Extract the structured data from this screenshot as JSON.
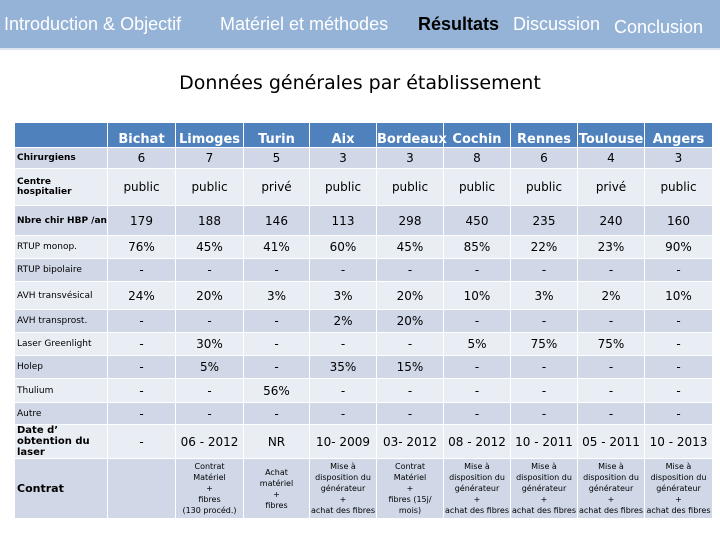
{
  "nav": {
    "items": [
      "Introduction & Objectif",
      "Matériel et méthodes",
      "Résultats",
      "Discussion",
      "Conclusion"
    ],
    "active": "Résultats"
  },
  "title": "Données générales par établissement",
  "table": {
    "columns": [
      "",
      "Bichat",
      "Limoges",
      "Turin",
      "Aix",
      "Bordeaux",
      "Cochin",
      "Rennes",
      "Toulouse",
      "Angers"
    ],
    "rows": [
      {
        "label": "Chirurgiens",
        "bold": true,
        "cells": [
          "6",
          "7",
          "5",
          "3",
          "3",
          "8",
          "6",
          "4",
          "3"
        ]
      },
      {
        "label": "Centre hospitalier",
        "bold": true,
        "cells": [
          "public",
          "public",
          "privé",
          "public",
          "public",
          "public",
          "public",
          "privé",
          "public"
        ]
      },
      {
        "label": "Nbre chir HBP /an",
        "bold": true,
        "cells": [
          "179",
          "188",
          "146",
          "113",
          "298",
          "450",
          "235",
          "240",
          "160"
        ]
      },
      {
        "label": "RTUP monop.",
        "bold": false,
        "cells": [
          "76%",
          "45%",
          "41%",
          "60%",
          "45%",
          "85%",
          "22%",
          "23%",
          "90%"
        ]
      },
      {
        "label": "RTUP bipolaire",
        "bold": false,
        "cells": [
          "-",
          "-",
          "-",
          "-",
          "-",
          "-",
          "-",
          "-",
          "-"
        ]
      },
      {
        "label": "AVH transvésical",
        "bold": false,
        "cells": [
          "24%",
          "20%",
          "3%",
          "3%",
          "20%",
          "10%",
          "3%",
          "2%",
          "10%"
        ]
      },
      {
        "label": "AVH transprost.",
        "bold": false,
        "cells": [
          "-",
          "-",
          "-",
          "2%",
          "20%",
          "-",
          "-",
          "-",
          "-"
        ]
      },
      {
        "label": "Laser Greenlight",
        "bold": false,
        "cells": [
          "-",
          "30%",
          "-",
          "-",
          "-",
          "5%",
          "75%",
          "75%",
          "-"
        ]
      },
      {
        "label": "Holep",
        "bold": false,
        "cells": [
          "-",
          "5%",
          "-",
          "35%",
          "15%",
          "-",
          "-",
          "-",
          "-"
        ]
      },
      {
        "label": "Thulium",
        "bold": false,
        "cells": [
          "-",
          "-",
          "56%",
          "-",
          "-",
          "-",
          "-",
          "-",
          "-"
        ]
      },
      {
        "label": "Autre",
        "bold": false,
        "cells": [
          "-",
          "-",
          "-",
          "-",
          "-",
          "-",
          "-",
          "-",
          "-"
        ]
      },
      {
        "label": "Date d’ obtention du laser",
        "bold": true,
        "cells": [
          "-",
          "06 - 2012",
          "NR",
          "10- 2009",
          "03- 2012",
          "08 - 2012",
          "10 - 2011",
          "05 - 2011",
          "10 - 2013"
        ]
      },
      {
        "label": "Contrat",
        "bold": true,
        "cells": [
          "",
          "Contrat\nMatériel\n+\nfibres\n(130 procéd.)",
          "Achat\nmatériel\n+\nfibres",
          "Mise à\ndisposition du\ngénérateur\n+\nachat des fibres",
          "Contrat\nMatériel\n+\nfibres (15j/\nmois)",
          "Mise à\ndisposition du\ngénérateur\n+\nachat des fibres",
          "Mise à\ndisposition du\ngénérateur\n+\nachat des fibres",
          "Mise à\ndisposition du\ngénérateur\n+\nachat des fibres",
          "Mise à\ndisposition du\ngénérateur\n+\nachat des fibres"
        ]
      }
    ]
  },
  "colors": {
    "nav": "#95b3d7",
    "header": "#4f81bd",
    "row_dark": "#d0d8e8",
    "row_light": "#e9edf4"
  }
}
